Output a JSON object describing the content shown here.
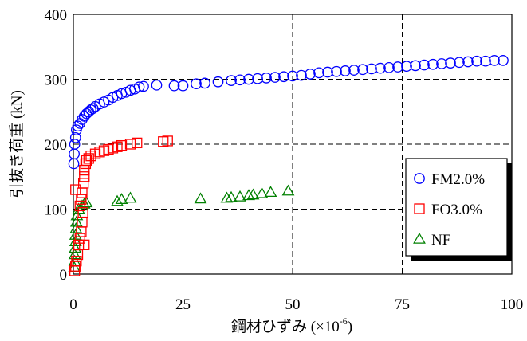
{
  "chart_data": {
    "type": "scatter",
    "xlabel": "鋼材ひずみ (×10",
    "xlabel_sup": "-6",
    "xlabel_end": ")",
    "ylabel": "引抜き荷重 (kN)",
    "xlim": [
      0,
      100
    ],
    "ylim": [
      0,
      400
    ],
    "x_ticks": [
      "0",
      "25",
      "50",
      "75",
      "100"
    ],
    "y_ticks": [
      "0",
      "100",
      "200",
      "300",
      "400"
    ],
    "grid": true,
    "legend_position": "right",
    "series": [
      {
        "name": "FM2.0%",
        "marker": "circle",
        "color": "#0000ff",
        "points": [
          [
            0.1,
            170
          ],
          [
            0.2,
            185
          ],
          [
            0.3,
            200
          ],
          [
            0.5,
            210
          ],
          [
            0.7,
            222
          ],
          [
            1,
            228
          ],
          [
            1.5,
            232
          ],
          [
            2,
            238
          ],
          [
            2.5,
            243
          ],
          [
            3,
            247
          ],
          [
            3.5,
            250
          ],
          [
            4,
            253
          ],
          [
            4.5,
            255
          ],
          [
            5,
            258
          ],
          [
            6,
            262
          ],
          [
            7,
            265
          ],
          [
            8,
            268
          ],
          [
            9,
            272
          ],
          [
            10,
            275
          ],
          [
            11,
            278
          ],
          [
            12,
            280
          ],
          [
            13,
            283
          ],
          [
            14,
            285
          ],
          [
            15,
            288
          ],
          [
            16,
            289
          ],
          [
            19,
            291
          ],
          [
            23,
            290
          ],
          [
            25,
            290
          ],
          [
            28,
            293
          ],
          [
            30,
            294
          ],
          [
            33,
            296
          ],
          [
            36,
            298
          ],
          [
            38,
            299
          ],
          [
            40,
            300
          ],
          [
            42,
            301
          ],
          [
            44,
            302
          ],
          [
            46,
            303
          ],
          [
            48,
            304
          ],
          [
            50,
            305
          ],
          [
            52,
            306
          ],
          [
            54,
            308
          ],
          [
            56,
            310
          ],
          [
            58,
            311
          ],
          [
            60,
            312
          ],
          [
            62,
            313
          ],
          [
            64,
            314
          ],
          [
            66,
            315
          ],
          [
            68,
            316
          ],
          [
            70,
            317
          ],
          [
            72,
            318
          ],
          [
            74,
            319
          ],
          [
            76,
            320
          ],
          [
            78,
            321
          ],
          [
            80,
            322
          ],
          [
            82,
            323
          ],
          [
            84,
            324
          ],
          [
            86,
            325
          ],
          [
            88,
            326
          ],
          [
            90,
            327
          ],
          [
            92,
            328
          ],
          [
            94,
            328
          ],
          [
            96,
            329
          ],
          [
            98,
            329
          ]
        ]
      },
      {
        "name": "FO3.0%",
        "marker": "square",
        "color": "#ff0000",
        "points": [
          [
            0.3,
            5
          ],
          [
            0.5,
            12
          ],
          [
            0.7,
            20
          ],
          [
            1,
            30
          ],
          [
            1.2,
            45
          ],
          [
            1.5,
            55
          ],
          [
            1.8,
            65
          ],
          [
            2,
            80
          ],
          [
            2.2,
            95
          ],
          [
            1.5,
            105
          ],
          [
            1.8,
            115
          ],
          [
            2,
            125
          ],
          [
            0.5,
            130
          ],
          [
            2.3,
            140
          ],
          [
            2.5,
            150
          ],
          [
            2.5,
            160
          ],
          [
            2.8,
            170
          ],
          [
            3,
            175
          ],
          [
            3.5,
            178
          ],
          [
            4,
            182
          ],
          [
            5,
            185
          ],
          [
            6,
            188
          ],
          [
            7,
            190
          ],
          [
            8,
            192
          ],
          [
            9,
            194
          ],
          [
            10,
            196
          ],
          [
            11,
            198
          ],
          [
            13,
            200
          ],
          [
            14.5,
            202
          ],
          [
            20.5,
            204
          ],
          [
            21.5,
            205
          ],
          [
            2.5,
            45
          ]
        ]
      },
      {
        "name": "NF",
        "marker": "triangle",
        "color": "#008000",
        "points": [
          [
            0.2,
            10
          ],
          [
            0.3,
            20
          ],
          [
            0.3,
            30
          ],
          [
            0.4,
            40
          ],
          [
            0.5,
            50
          ],
          [
            0.5,
            60
          ],
          [
            0.6,
            70
          ],
          [
            0.7,
            80
          ],
          [
            0.8,
            90
          ],
          [
            1.2,
            100
          ],
          [
            2,
            105
          ],
          [
            2.5,
            108
          ],
          [
            3,
            110
          ],
          [
            10,
            112
          ],
          [
            11,
            115
          ],
          [
            13,
            117
          ],
          [
            29,
            116
          ],
          [
            35,
            117
          ],
          [
            36,
            118
          ],
          [
            38,
            119
          ],
          [
            40,
            121
          ],
          [
            41,
            122
          ],
          [
            43,
            124
          ],
          [
            45,
            126
          ],
          [
            49,
            128
          ]
        ]
      }
    ]
  }
}
